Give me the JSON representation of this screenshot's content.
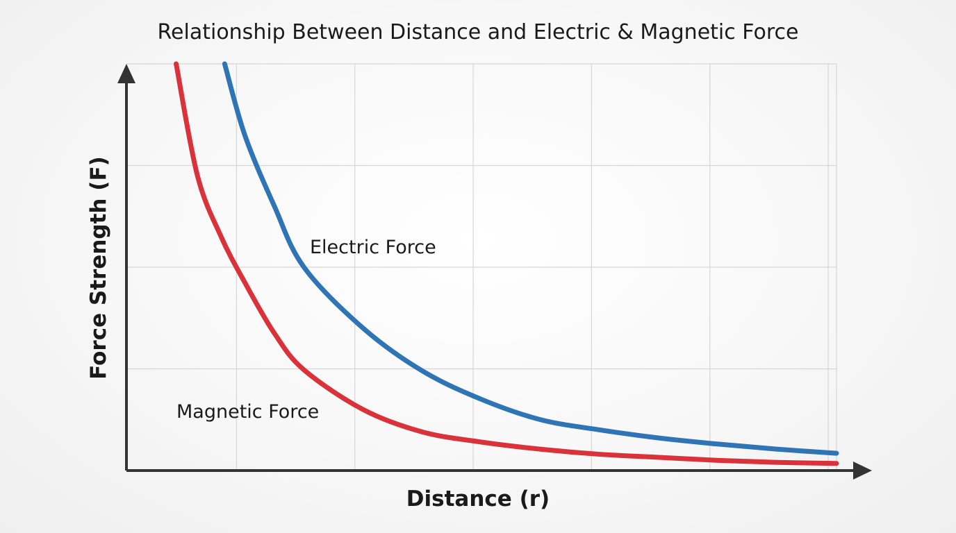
{
  "chart_data": {
    "type": "line",
    "title": "Relationship Between Distance and Electric & Magnetic Force",
    "xlabel": "Distance (r)",
    "ylabel": "Force Strength (F)",
    "xlim": [
      0,
      6
    ],
    "ylim": [
      0,
      4
    ],
    "grid": true,
    "tick_labels": false,
    "series": [
      {
        "name": "Electric Force",
        "color": "#2f74b5",
        "x": [
          0.83,
          1.0,
          1.25,
          1.5,
          2.0,
          2.5,
          3.0,
          3.5,
          4.0,
          4.5,
          5.0,
          5.5,
          6.0
        ],
        "y": [
          4.0,
          3.3,
          2.6,
          2.0,
          1.4,
          0.98,
          0.7,
          0.5,
          0.4,
          0.32,
          0.26,
          0.21,
          0.17
        ]
      },
      {
        "name": "Magnetic Force",
        "color": "#d9323a",
        "x": [
          0.42,
          0.6,
          0.8,
          1.0,
          1.25,
          1.5,
          2.0,
          2.5,
          3.0,
          3.5,
          4.0,
          4.5,
          5.0,
          5.5,
          6.0
        ],
        "y": [
          4.0,
          2.9,
          2.3,
          1.85,
          1.35,
          0.99,
          0.6,
          0.38,
          0.28,
          0.21,
          0.16,
          0.13,
          0.1,
          0.08,
          0.07
        ]
      }
    ]
  }
}
